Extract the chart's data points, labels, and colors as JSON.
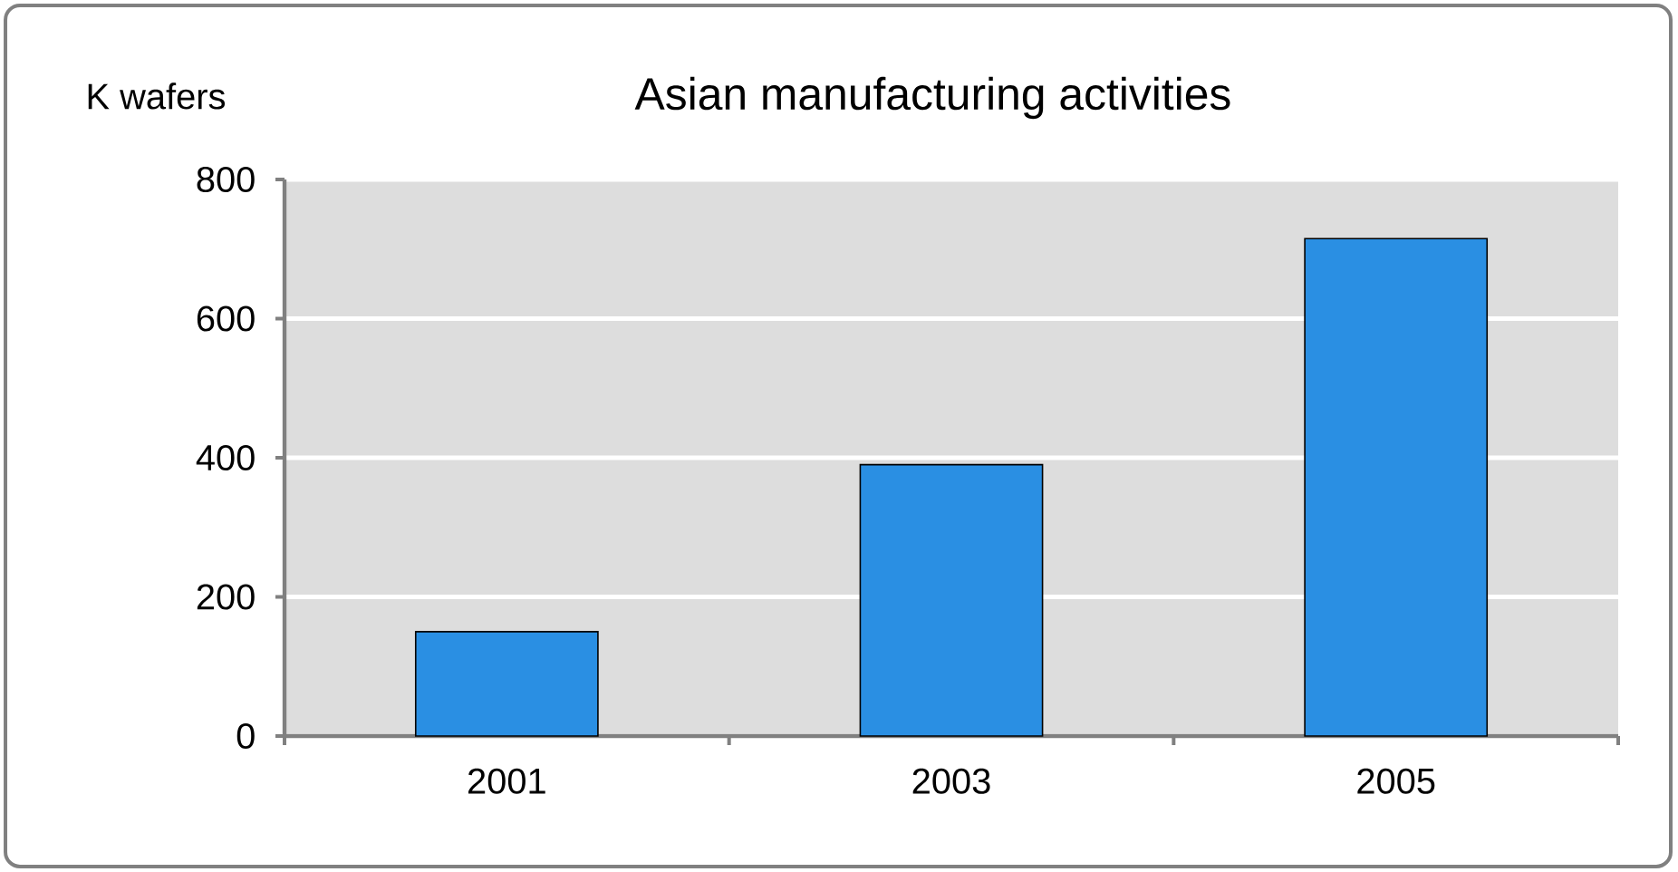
{
  "chart_data": {
    "type": "bar",
    "title": "Asian manufacturing activities",
    "ylabel": "K wafers",
    "categories": [
      "2001",
      "2003",
      "2005"
    ],
    "values": [
      150,
      390,
      715
    ],
    "color": "#2a8fe3",
    "ylim": [
      0,
      800
    ],
    "yticks": [
      0,
      200,
      400,
      600,
      800
    ],
    "grid": "y"
  }
}
